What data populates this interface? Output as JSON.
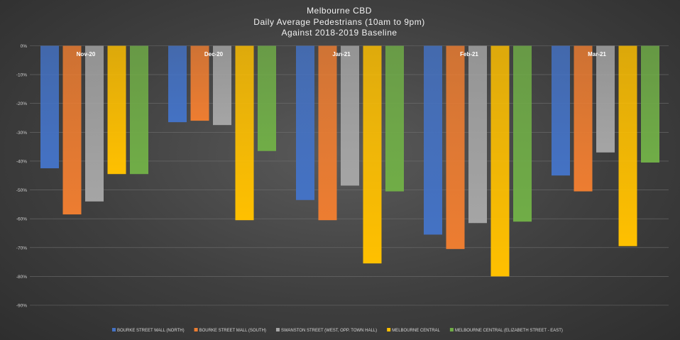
{
  "chart_data": {
    "type": "bar",
    "title_lines": [
      "Melbourne CBD",
      "Daily Average Pedestrians (10am to 9pm)",
      "Against 2018-2019 Baseline"
    ],
    "categories": [
      "Nov-20",
      "Dec-20",
      "Jan-21",
      "Feb-21",
      "Mar-21"
    ],
    "y_ticks": [
      "0%",
      "-10%",
      "-20%",
      "-30%",
      "-40%",
      "-50%",
      "-60%",
      "-70%",
      "-80%",
      "-90%"
    ],
    "ylim": [
      -90,
      0
    ],
    "grid": true,
    "legend_position": "bottom",
    "series": [
      {
        "name": "BOURKE STREET MALL (NORTH)",
        "color": "#4472c4",
        "values": [
          -42.5,
          -26.5,
          -53.5,
          -65.5,
          -45
        ]
      },
      {
        "name": "BOURKE STREET MALL (SOUTH)",
        "color": "#ed7d31",
        "values": [
          -58.5,
          -26,
          -60.5,
          -70.5,
          -50.5
        ]
      },
      {
        "name": "SWANSTON STREET (WEST, OPP. TOWN HALL)",
        "color": "#a5a5a5",
        "values": [
          -54,
          -27.5,
          -48.5,
          -61.5,
          -37
        ]
      },
      {
        "name": "MELBOURNE CENTRAL",
        "color": "#ffc000",
        "values": [
          -44.5,
          -60.5,
          -75.5,
          -80,
          -69.5
        ]
      },
      {
        "name": "MELBOURNE CENTRAL (ELIZABETH STREET - EAST)",
        "color": "#70ad47",
        "values": [
          -44.5,
          -36.5,
          -50.5,
          -61,
          -40.5
        ]
      }
    ]
  }
}
